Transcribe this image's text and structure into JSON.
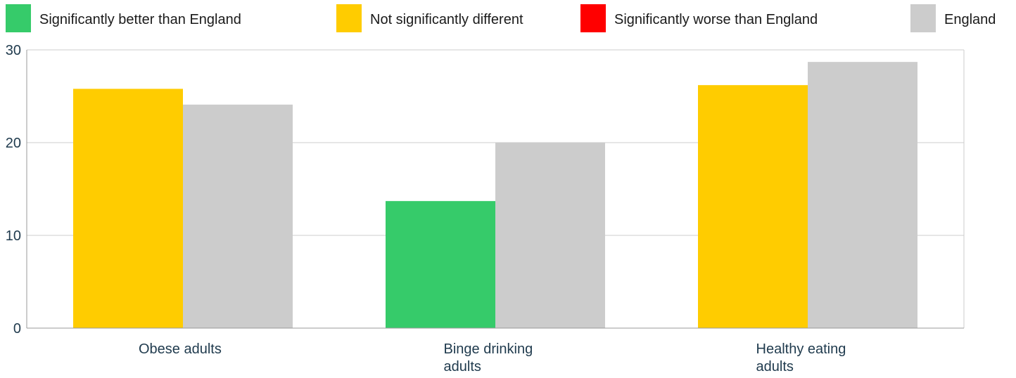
{
  "legend": {
    "items": [
      {
        "label": "Significantly better than England",
        "color": "#36cb6a"
      },
      {
        "label": "Not significantly different",
        "color": "#ffcc00"
      },
      {
        "label": "Significantly worse than England",
        "color": "#ff0000"
      },
      {
        "label": "England",
        "color": "#cccccc"
      }
    ]
  },
  "chart_data": {
    "type": "bar",
    "title": "",
    "xlabel": "",
    "ylabel": "",
    "ylim": [
      0,
      30
    ],
    "yticks": [
      0,
      10,
      20,
      30
    ],
    "grid": true,
    "legend_position": "top",
    "categories": [
      {
        "label_lines": [
          "Obese adults"
        ],
        "area_value": 25.8,
        "area_color": "#ffcc00",
        "england_value": 24.1
      },
      {
        "label_lines": [
          "Binge drinking",
          "adults"
        ],
        "area_value": 13.7,
        "area_color": "#36cb6a",
        "england_value": 20.0
      },
      {
        "label_lines": [
          "Healthy eating",
          "adults"
        ],
        "area_value": 26.2,
        "area_color": "#ffcc00",
        "england_value": 28.7
      }
    ],
    "england_color": "#cccccc"
  }
}
